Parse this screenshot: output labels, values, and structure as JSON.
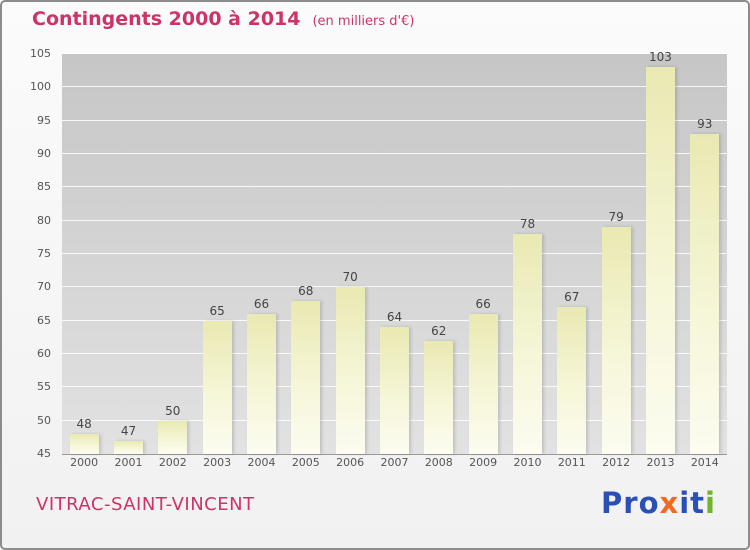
{
  "header": {
    "title": "Contingents 2000 à 2014",
    "subtitle": "(en milliers d'€)"
  },
  "chart_data": {
    "type": "bar",
    "title": "Contingents 2000 à 2014",
    "subtitle": "(en milliers d'€)",
    "categories": [
      "2000",
      "2001",
      "2002",
      "2003",
      "2004",
      "2005",
      "2006",
      "2007",
      "2008",
      "2009",
      "2010",
      "2011",
      "2012",
      "2013",
      "2014"
    ],
    "values": [
      48,
      47,
      50,
      65,
      66,
      68,
      70,
      64,
      62,
      66,
      78,
      67,
      79,
      103,
      93
    ],
    "xlabel": "",
    "ylabel": "",
    "ylim": [
      45,
      105
    ],
    "ytick_step": 5,
    "grid": true,
    "legend": "none",
    "bar_color_top": "#e9e9b2",
    "bar_color_bottom": "#fcfcf0",
    "plot_bg_top": "#c6c6c6",
    "plot_bg_bottom": "#e2e2e2",
    "accent_color": "#cc3366"
  },
  "footer": {
    "location": "VITRAC-SAINT-VINCENT",
    "logo_letters": [
      {
        "ch": "P",
        "color": "#2b50b5"
      },
      {
        "ch": "r",
        "color": "#2b50b5"
      },
      {
        "ch": "o",
        "color": "#2b50b5"
      },
      {
        "ch": "x",
        "color": "#f26a21"
      },
      {
        "ch": "i",
        "color": "#2b50b5"
      },
      {
        "ch": "t",
        "color": "#2b50b5"
      },
      {
        "ch": "i",
        "color": "#6fb429"
      }
    ]
  }
}
